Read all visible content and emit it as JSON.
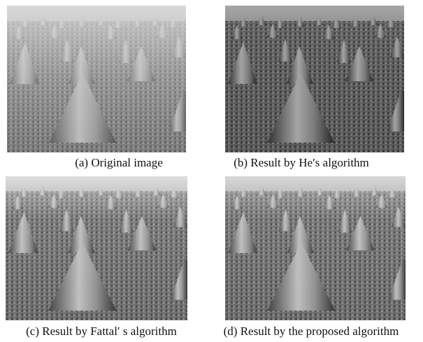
{
  "panels": [
    {
      "caption": "(a) Original image"
    },
    {
      "caption": "(b) Result by He′s algorithm"
    },
    {
      "caption": "(c) Result by Fattal′ s algorithm"
    },
    {
      "caption": "(d) Result by the proposed algorithm"
    }
  ]
}
